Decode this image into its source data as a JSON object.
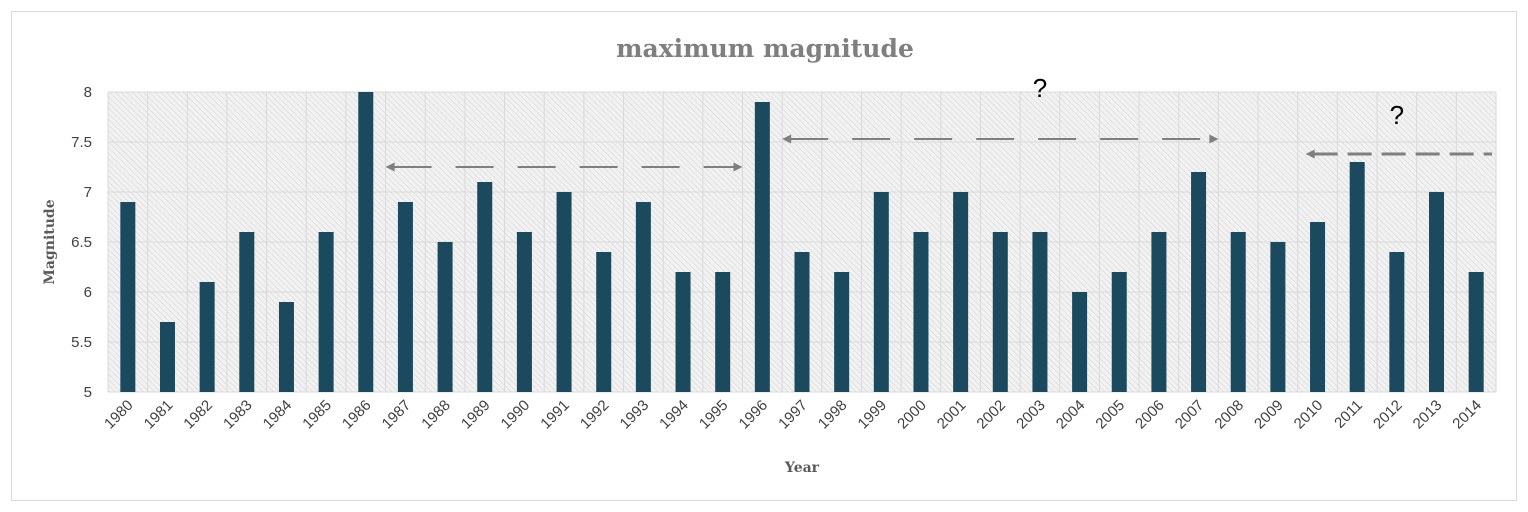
{
  "chart_data": {
    "type": "bar",
    "title": "maximum magnitude",
    "xlabel": "Year",
    "ylabel": "Magnitude",
    "ylim": [
      5,
      8
    ],
    "yticks": [
      "5",
      "5.5",
      "6",
      "6.5",
      "7",
      "7.5",
      "8"
    ],
    "grid": true,
    "bar_color": "#1b4a5e",
    "categories": [
      "1980",
      "1981",
      "1982",
      "1983",
      "1984",
      "1985",
      "1986",
      "1987",
      "1988",
      "1989",
      "1990",
      "1991",
      "1992",
      "1993",
      "1994",
      "1995",
      "1996",
      "1997",
      "1998",
      "1999",
      "2000",
      "2001",
      "2002",
      "2003",
      "2004",
      "2005",
      "2006",
      "2007",
      "2008",
      "2009",
      "2010",
      "2011",
      "2012",
      "2013",
      "2014"
    ],
    "values": [
      6.9,
      5.7,
      6.1,
      6.6,
      5.9,
      6.6,
      8.0,
      6.9,
      6.5,
      7.1,
      6.6,
      7.0,
      6.4,
      6.9,
      6.2,
      6.2,
      7.9,
      6.4,
      6.2,
      7.0,
      6.6,
      7.0,
      6.6,
      6.6,
      6.0,
      6.2,
      6.6,
      7.2,
      6.6,
      6.5,
      6.7,
      7.3,
      6.4,
      7.0,
      6.2
    ],
    "annotations": [
      {
        "type": "double-arrow",
        "from": "1987",
        "to": "1995",
        "y": 7.25,
        "color": "#7f7f7f"
      },
      {
        "type": "double-arrow",
        "from": "1997",
        "to": "2007",
        "y": 7.53,
        "color": "#7f7f7f"
      },
      {
        "type": "question-mark",
        "text": "?",
        "x": "2003",
        "y": 7.95
      },
      {
        "type": "left-arrow",
        "from": "2010",
        "to": "2014",
        "y": 7.38,
        "color": "#7f7f7f"
      },
      {
        "type": "question-mark",
        "text": "?",
        "x": "2012",
        "y": 7.68
      }
    ]
  }
}
